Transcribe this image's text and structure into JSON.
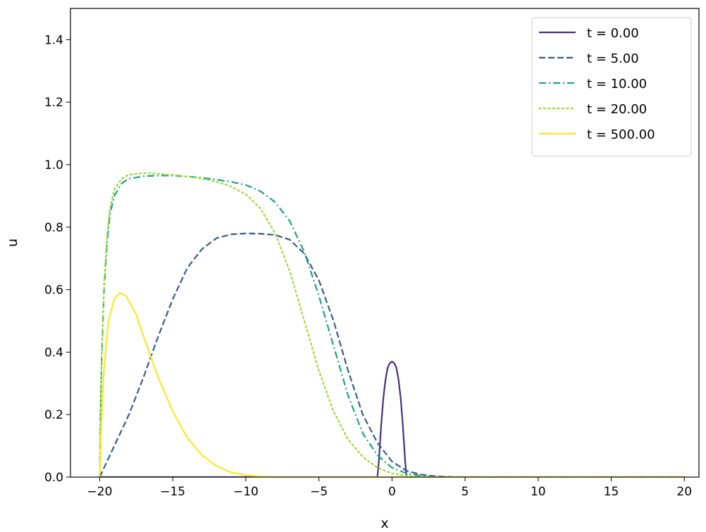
{
  "chart_data": {
    "type": "line",
    "xlabel": "x",
    "ylabel": "u",
    "xlim": [
      -22,
      21
    ],
    "ylim": [
      0,
      1.5
    ],
    "x_ticks": [
      -20,
      -15,
      -10,
      -5,
      0,
      5,
      10,
      15,
      20
    ],
    "x_tick_labels": [
      "−20",
      "−15",
      "−10",
      "−5",
      "0",
      "5",
      "10",
      "15",
      "20"
    ],
    "y_ticks": [
      0.0,
      0.2,
      0.4,
      0.6,
      0.8,
      1.0,
      1.2,
      1.4
    ],
    "y_tick_labels": [
      "0.0",
      "0.2",
      "0.4",
      "0.6",
      "0.8",
      "1.0",
      "1.2",
      "1.4"
    ],
    "grid": false,
    "legend_position": "upper right",
    "series": [
      {
        "name": "t = 0.00",
        "color": "#46327e",
        "style": "solid",
        "points": [
          [
            -20,
            0
          ],
          [
            -1,
            0
          ],
          [
            -0.9,
            0.05
          ],
          [
            -0.75,
            0.16
          ],
          [
            -0.6,
            0.25
          ],
          [
            -0.45,
            0.31
          ],
          [
            -0.3,
            0.35
          ],
          [
            -0.15,
            0.365
          ],
          [
            0,
            0.37
          ],
          [
            0.15,
            0.365
          ],
          [
            0.3,
            0.35
          ],
          [
            0.45,
            0.31
          ],
          [
            0.6,
            0.25
          ],
          [
            0.75,
            0.16
          ],
          [
            0.9,
            0.05
          ],
          [
            1,
            0
          ],
          [
            20,
            0
          ]
        ]
      },
      {
        "name": "t = 5.00",
        "color": "#365c8d",
        "style": "dashed",
        "points": [
          [
            -20,
            0
          ],
          [
            -19.5,
            0.05
          ],
          [
            -19,
            0.1
          ],
          [
            -18,
            0.2
          ],
          [
            -17,
            0.32
          ],
          [
            -16,
            0.45
          ],
          [
            -15,
            0.57
          ],
          [
            -14,
            0.67
          ],
          [
            -13,
            0.73
          ],
          [
            -12,
            0.765
          ],
          [
            -11,
            0.777
          ],
          [
            -10,
            0.78
          ],
          [
            -9,
            0.779
          ],
          [
            -8,
            0.775
          ],
          [
            -7,
            0.76
          ],
          [
            -6,
            0.715
          ],
          [
            -5,
            0.63
          ],
          [
            -4,
            0.5
          ],
          [
            -3,
            0.34
          ],
          [
            -2,
            0.2
          ],
          [
            -1,
            0.11
          ],
          [
            0,
            0.05
          ],
          [
            1,
            0.02
          ],
          [
            2,
            0.008
          ],
          [
            3,
            0.003
          ],
          [
            4,
            0.001
          ],
          [
            5,
            0
          ],
          [
            20,
            0
          ]
        ]
      },
      {
        "name": "t = 10.00",
        "color": "#1fa187",
        "style": "dashdot",
        "points": [
          [
            -20,
            0
          ],
          [
            -19.95,
            0.2
          ],
          [
            -19.85,
            0.4
          ],
          [
            -19.7,
            0.6
          ],
          [
            -19.5,
            0.75
          ],
          [
            -19.3,
            0.84
          ],
          [
            -19,
            0.9
          ],
          [
            -18.5,
            0.94
          ],
          [
            -18,
            0.955
          ],
          [
            -17,
            0.963
          ],
          [
            -16,
            0.965
          ],
          [
            -15,
            0.965
          ],
          [
            -14,
            0.962
          ],
          [
            -13,
            0.958
          ],
          [
            -12,
            0.952
          ],
          [
            -11,
            0.945
          ],
          [
            -10,
            0.935
          ],
          [
            -9,
            0.915
          ],
          [
            -8,
            0.88
          ],
          [
            -7,
            0.82
          ],
          [
            -6,
            0.72
          ],
          [
            -5,
            0.58
          ],
          [
            -4,
            0.42
          ],
          [
            -3,
            0.26
          ],
          [
            -2,
            0.14
          ],
          [
            -1,
            0.07
          ],
          [
            0,
            0.03
          ],
          [
            1,
            0.012
          ],
          [
            2,
            0.004
          ],
          [
            3,
            0.001
          ],
          [
            4,
            0
          ],
          [
            20,
            0
          ]
        ]
      },
      {
        "name": "t = 20.00",
        "color": "#a0da39",
        "style": "dotted",
        "points": [
          [
            -20,
            0
          ],
          [
            -19.95,
            0.2
          ],
          [
            -19.85,
            0.42
          ],
          [
            -19.7,
            0.62
          ],
          [
            -19.5,
            0.77
          ],
          [
            -19.3,
            0.86
          ],
          [
            -19,
            0.92
          ],
          [
            -18.5,
            0.955
          ],
          [
            -18,
            0.968
          ],
          [
            -17,
            0.973
          ],
          [
            -16,
            0.971
          ],
          [
            -15,
            0.967
          ],
          [
            -14,
            0.962
          ],
          [
            -13,
            0.955
          ],
          [
            -12,
            0.945
          ],
          [
            -11,
            0.93
          ],
          [
            -10,
            0.905
          ],
          [
            -9,
            0.86
          ],
          [
            -8,
            0.78
          ],
          [
            -7,
            0.66
          ],
          [
            -6,
            0.5
          ],
          [
            -5,
            0.34
          ],
          [
            -4,
            0.21
          ],
          [
            -3,
            0.12
          ],
          [
            -2,
            0.065
          ],
          [
            -1,
            0.03
          ],
          [
            0,
            0.012
          ],
          [
            1,
            0.004
          ],
          [
            2,
            0.001
          ],
          [
            3,
            0
          ],
          [
            20,
            0
          ]
        ]
      },
      {
        "name": "t = 500.00",
        "color": "#fde725",
        "style": "solid",
        "points": [
          [
            -20,
            0
          ],
          [
            -19.9,
            0.15
          ],
          [
            -19.7,
            0.35
          ],
          [
            -19.4,
            0.5
          ],
          [
            -19,
            0.57
          ],
          [
            -18.6,
            0.59
          ],
          [
            -18.2,
            0.58
          ],
          [
            -17.5,
            0.52
          ],
          [
            -17,
            0.45
          ],
          [
            -16,
            0.32
          ],
          [
            -15,
            0.21
          ],
          [
            -14,
            0.125
          ],
          [
            -13,
            0.07
          ],
          [
            -12,
            0.035
          ],
          [
            -11,
            0.015
          ],
          [
            -10,
            0.006
          ],
          [
            -9,
            0.002
          ],
          [
            -8,
            0
          ],
          [
            20,
            0
          ]
        ]
      }
    ]
  }
}
